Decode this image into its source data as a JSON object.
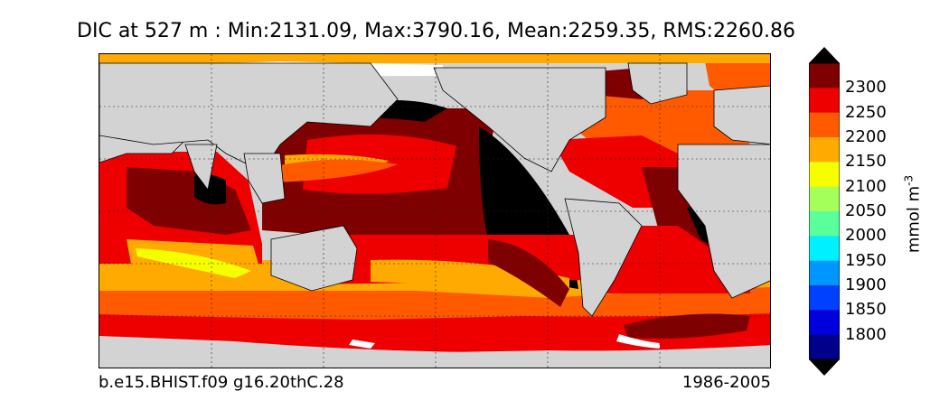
{
  "title": "DIC at 527 m : Min:2131.09, Max:3790.16, Mean:2259.35, RMS:2260.86",
  "caption_left": "b.e15.BHIST.f09 g16.20thC.28",
  "caption_right": "1986-2005",
  "colorbar": {
    "unit_label": "mmol m",
    "unit_superscript": "-3",
    "ticks": [
      "2300",
      "2250",
      "2200",
      "2150",
      "2100",
      "2050",
      "2000",
      "1950",
      "1900",
      "1850",
      "1800"
    ],
    "colors_top_to_bottom": [
      "#7f0000",
      "#ee0000",
      "#ff5a00",
      "#ffaa00",
      "#f5ff00",
      "#a5ff5a",
      "#5aff9c",
      "#00f0ff",
      "#0096ff",
      "#0040ff",
      "#0000dd",
      "#00008a"
    ],
    "overflow_high_color": "#000000",
    "overflow_low_color": "#000000",
    "extend": "both"
  },
  "map": {
    "projection": "cylindrical, 20E to 380E",
    "land_color": "#d3d3d3",
    "no_data_color": "#ffffff",
    "gridlines": "dotted"
  }
}
